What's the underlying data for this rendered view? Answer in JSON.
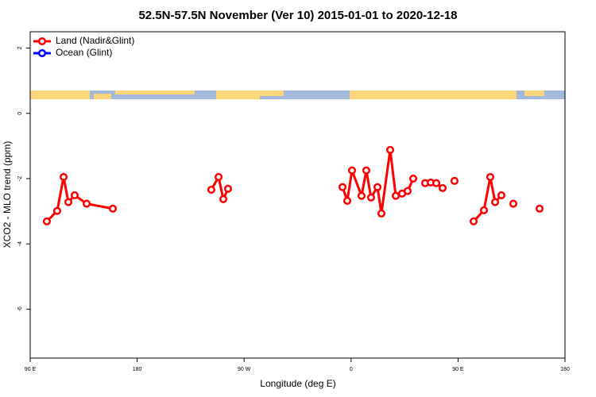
{
  "chart_data": {
    "type": "line",
    "title": "52.5N-57.5N November (Ver 10)   2015-01-01 to 2020-12-18",
    "x_label": "Longitude (deg E)",
    "y_label": "XCO2 - MLO trend (ppm)",
    "xlim": [
      90,
      540
    ],
    "xticks": [
      {
        "value": 90,
        "label": "90 E"
      },
      {
        "value": 180,
        "label": "180"
      },
      {
        "value": 270,
        "label": "90 W"
      },
      {
        "value": 360,
        "label": "0"
      },
      {
        "value": 450,
        "label": "90 E"
      },
      {
        "value": 540,
        "label": "180"
      }
    ],
    "ylim": [
      -7.5,
      2.5
    ],
    "yticks": [
      2,
      0,
      -2,
      -4,
      -6
    ],
    "legend": "top-left",
    "series": [
      {
        "name": "Land (Nadir&Glint)",
        "color": "#ff0000",
        "x": [
          104.0,
          112.7,
          118.1,
          122.1,
          127.4,
          137.5,
          159.5,
          null,
          242.4,
          248.5,
          252.5,
          256.5,
          null,
          352.8,
          356.8,
          360.8,
          368.8,
          372.8,
          376.8,
          382.2,
          385.5,
          392.9,
          397.6,
          402.9,
          407.6,
          412.3,
          null,
          422.3,
          427.0,
          431.7,
          437.0,
          null,
          447.0,
          null,
          463.1,
          471.8,
          477.1,
          481.2,
          486.5,
          null,
          496.5,
          null,
          518.6
        ],
        "values": [
          -3.31,
          -2.99,
          -1.95,
          -2.72,
          -2.51,
          -2.77,
          -2.92,
          null,
          -2.34,
          -1.95,
          -2.63,
          -2.31,
          null,
          -2.26,
          -2.68,
          -1.75,
          -2.53,
          -1.75,
          -2.58,
          -2.26,
          -3.07,
          -1.12,
          -2.53,
          -2.46,
          -2.38,
          -2.0,
          null,
          -2.14,
          -2.12,
          -2.14,
          -2.29,
          null,
          -2.07,
          null,
          -3.31,
          -2.97,
          -1.95,
          -2.72,
          -2.51,
          null,
          -2.77,
          null,
          -2.92
        ]
      },
      {
        "name": "Ocean (Glint)",
        "color": "#0000ff",
        "x": [],
        "values": []
      }
    ]
  }
}
